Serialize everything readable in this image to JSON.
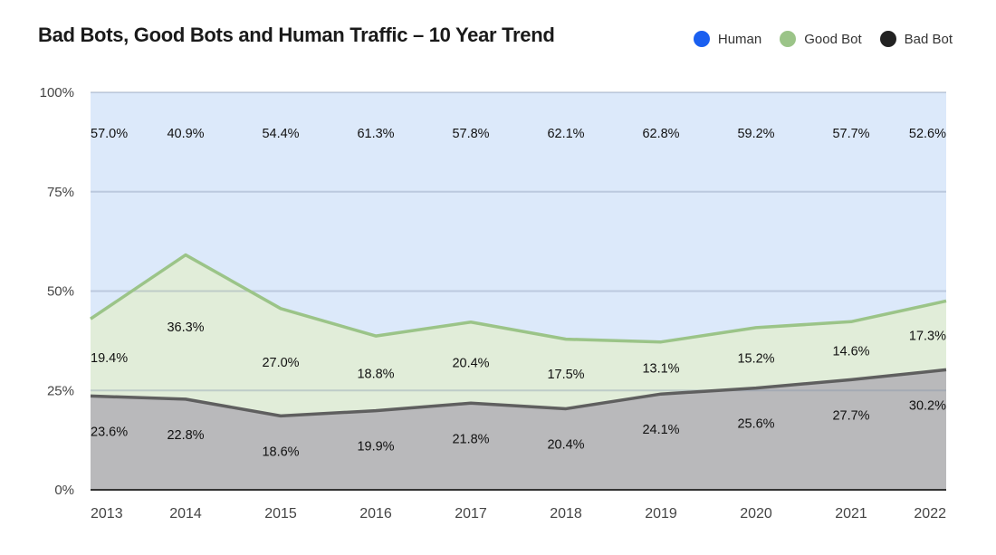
{
  "chart_data": {
    "type": "area",
    "title": "Bad Bots, Good Bots and Human Traffic – 10 Year Trend",
    "stacked": true,
    "categories": [
      "2013",
      "2014",
      "2015",
      "2016",
      "2017",
      "2018",
      "2019",
      "2020",
      "2021",
      "2022"
    ],
    "ylim": [
      0,
      100
    ],
    "yticks": [
      "0%",
      "25%",
      "50%",
      "75%",
      "100%"
    ],
    "series": [
      {
        "name": "Bad Bot",
        "color": "#222222",
        "fill": "#b9b9bb",
        "line": "#5f5f5f",
        "values": [
          23.6,
          22.8,
          18.6,
          19.9,
          21.8,
          20.4,
          24.1,
          25.6,
          27.7,
          30.2
        ],
        "labels": [
          "23.6%",
          "22.8%",
          "18.6%",
          "19.9%",
          "21.8%",
          "20.4%",
          "24.1%",
          "25.6%",
          "27.7%",
          "30.2%"
        ]
      },
      {
        "name": "Good Bot",
        "color": "#9bc488",
        "fill": "#e1edd9",
        "line": "#9bc488",
        "values": [
          19.4,
          36.3,
          27.0,
          18.8,
          20.4,
          17.5,
          13.1,
          15.2,
          14.6,
          17.3
        ],
        "labels": [
          "19.4%",
          "36.3%",
          "27.0%",
          "18.8%",
          "20.4%",
          "17.5%",
          "13.1%",
          "15.2%",
          "14.6%",
          "17.3%"
        ]
      },
      {
        "name": "Human",
        "color": "#1a5ff0",
        "fill": "#dce9fa",
        "line": "#dce9fa",
        "values": [
          57.0,
          40.9,
          54.4,
          61.3,
          57.8,
          62.1,
          62.8,
          59.2,
          57.7,
          52.6
        ],
        "labels": [
          "57.0%",
          "40.9%",
          "54.4%",
          "61.3%",
          "57.8%",
          "62.1%",
          "62.8%",
          "59.2%",
          "57.7%",
          "52.6%"
        ]
      }
    ],
    "legend_order": [
      "Human",
      "Good Bot",
      "Bad Bot"
    ],
    "legend_position": "top-right",
    "grid": true
  }
}
